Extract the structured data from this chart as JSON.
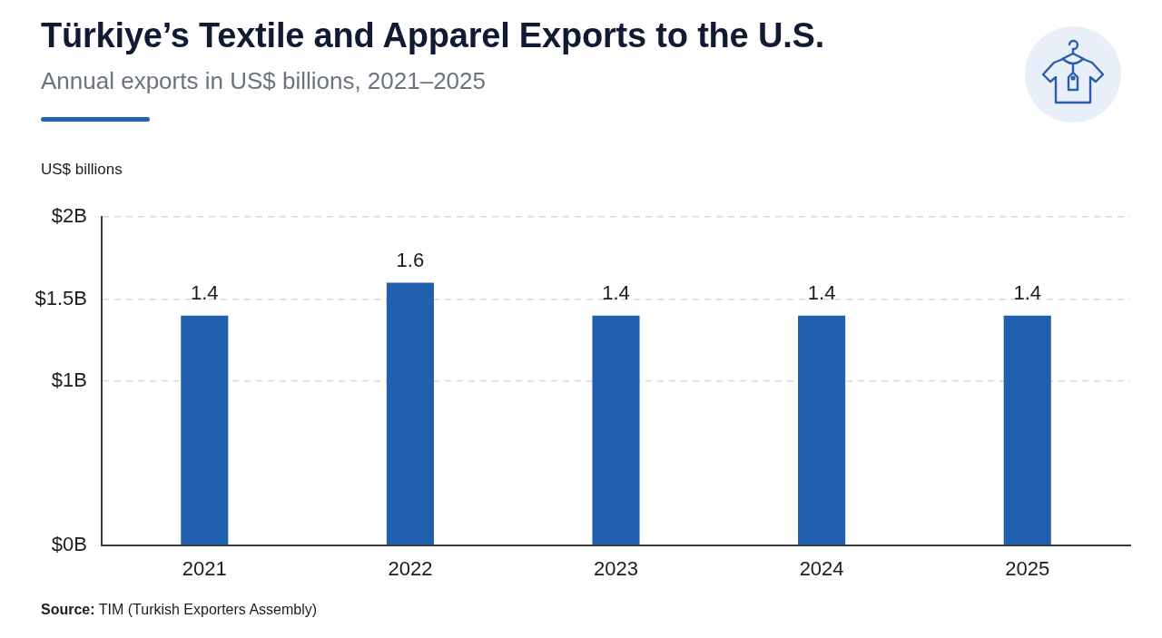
{
  "chart_data": {
    "type": "bar",
    "title": "Türkiye’s Textile and Apparel Exports to the U.S.",
    "subtitle": "Annual exports in US$ billions, 2021–2025",
    "ylabel": "US$ billions",
    "categories": [
      "2021",
      "2022",
      "2023",
      "2024",
      "2025"
    ],
    "values": [
      1.4,
      1.6,
      1.4,
      1.4,
      1.4
    ],
    "color": "#2160ae",
    "ylim": [
      0,
      2
    ],
    "yticks": [
      {
        "value": 0,
        "label": "$0B"
      },
      {
        "value": 1,
        "label": "$1B"
      },
      {
        "value": 1.5,
        "label": "$1.5B"
      },
      {
        "value": 2,
        "label": "$2B"
      }
    ],
    "grid": "y",
    "data_labels": true,
    "annotations": [
      "Source: TIM (Turkish Exporters Assembly)"
    ]
  }
}
